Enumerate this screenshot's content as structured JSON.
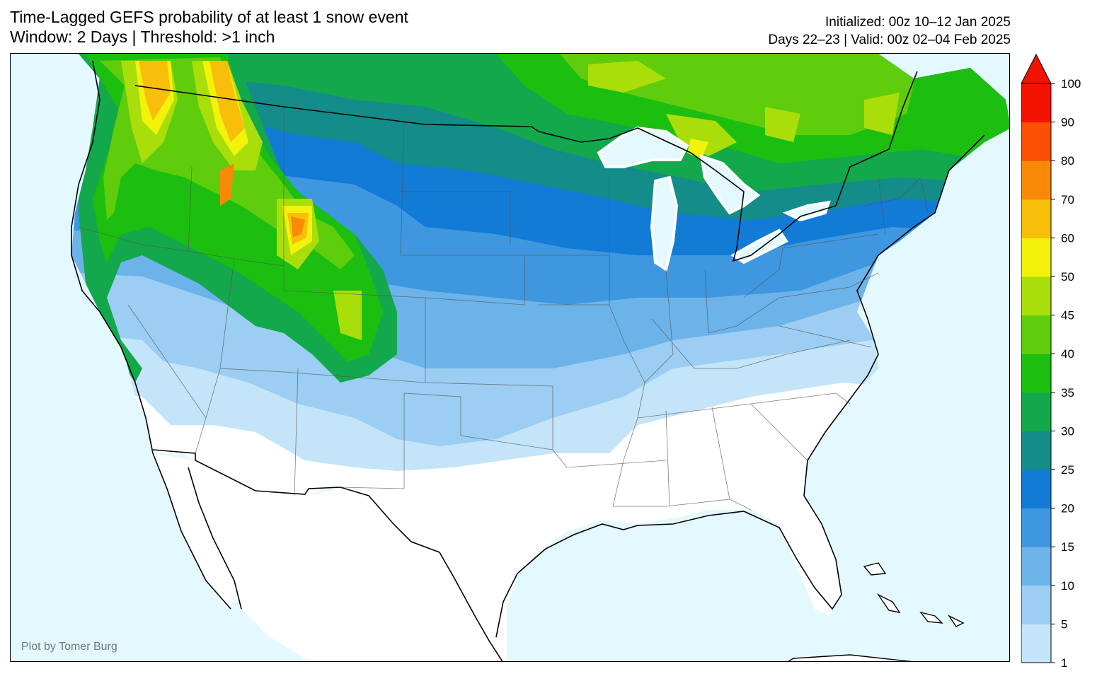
{
  "header": {
    "title_line1": "Time-Lagged GEFS probability of at least 1 snow event",
    "title_line2": "Window: 2 Days | Threshold: >1 inch",
    "init_line": "Initialized: 00z 10–12 Jan 2025",
    "valid_line": "Days 22–23 | Valid: 00z 02–04 Feb 2025"
  },
  "credit": "Plot by Tomer Burg",
  "colorbar": {
    "levels": [
      1,
      5,
      10,
      15,
      20,
      25,
      30,
      35,
      40,
      45,
      50,
      60,
      70,
      80,
      90,
      100
    ],
    "colors": [
      "#c3e4f9",
      "#9ccdf3",
      "#6cb3ea",
      "#3f97e0",
      "#117bd6",
      "#138c8a",
      "#13a84b",
      "#1cbf0f",
      "#5fcd0c",
      "#a9de0a",
      "#f2f20a",
      "#f7bf0a",
      "#f98a08",
      "#fb5004",
      "#f31200"
    ],
    "extend_color": "#f31200"
  },
  "map": {
    "ocean_color": "#e3f8ff",
    "land_color": "#ffffff"
  }
}
